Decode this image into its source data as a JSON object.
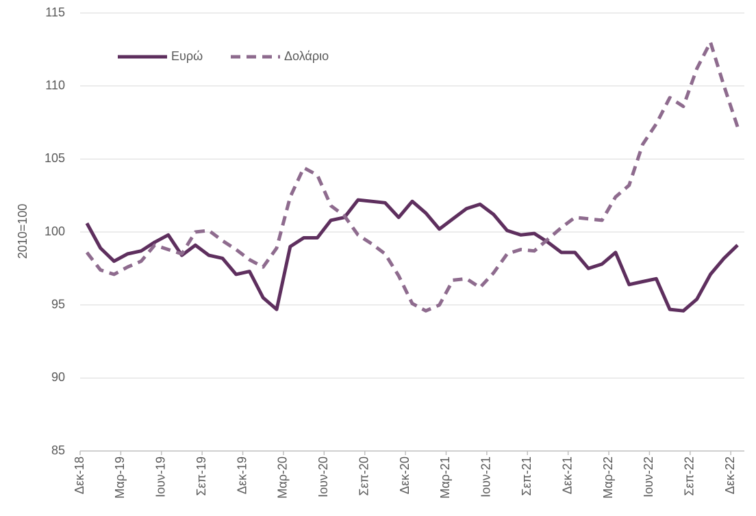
{
  "chart_data": {
    "type": "line",
    "y_label": "2010=100",
    "categories": [
      "Δεκ-18",
      null,
      null,
      "Μαρ-19",
      null,
      null,
      "Ιουν-19",
      null,
      null,
      "Σεπ-19",
      null,
      null,
      "Δεκ-19",
      null,
      null,
      "Μαρ-20",
      null,
      null,
      "Ιουν-20",
      null,
      null,
      "Σεπ-20",
      null,
      null,
      "Δεκ-20",
      null,
      null,
      "Μαρ-21",
      null,
      null,
      "Ιουν-21",
      null,
      null,
      "Σεπ-21",
      null,
      null,
      "Δεκ-21",
      null,
      null,
      "Μαρ-22",
      null,
      null,
      "Ιουν-22",
      null,
      null,
      "Σεπ-22",
      null,
      null,
      "Δεκ-22"
    ],
    "series": [
      {
        "name": "Ευρώ",
        "color": "#5e2f5e",
        "dash": false,
        "values": [
          100.6,
          98.9,
          98.0,
          98.5,
          98.7,
          99.3,
          99.8,
          98.4,
          99.1,
          98.4,
          98.2,
          97.1,
          97.3,
          95.5,
          94.7,
          99.0,
          99.6,
          99.6,
          100.8,
          101.0,
          102.2,
          102.1,
          102.0,
          101.0,
          102.1,
          101.3,
          100.2,
          100.9,
          101.6,
          101.9,
          101.2,
          100.1,
          99.8,
          99.9,
          99.3,
          98.6,
          98.6,
          97.5,
          97.8,
          98.6,
          96.4,
          96.6,
          96.8,
          94.7,
          94.6,
          95.4,
          97.1,
          98.2,
          99.1
        ]
      },
      {
        "name": "Δολάριο",
        "color": "#8e6b8e",
        "dash": true,
        "values": [
          98.6,
          97.4,
          97.1,
          97.6,
          98.0,
          99.1,
          98.8,
          98.5,
          100.0,
          100.1,
          99.4,
          98.8,
          98.1,
          97.6,
          98.9,
          102.4,
          104.4,
          103.9,
          101.8,
          101.1,
          99.8,
          99.2,
          98.5,
          97.0,
          95.1,
          94.6,
          95.0,
          96.7,
          96.8,
          96.2,
          97.2,
          98.5,
          98.8,
          98.7,
          99.5,
          100.3,
          101.0,
          100.9,
          100.8,
          102.4,
          103.2,
          106.0,
          107.4,
          109.2,
          108.6,
          111.2,
          113.0,
          110.0,
          107.2
        ]
      }
    ],
    "ylim": [
      85,
      115
    ],
    "yticks": [
      85,
      90,
      95,
      100,
      105,
      110,
      115
    ],
    "grid": true,
    "legend": "top-left"
  }
}
